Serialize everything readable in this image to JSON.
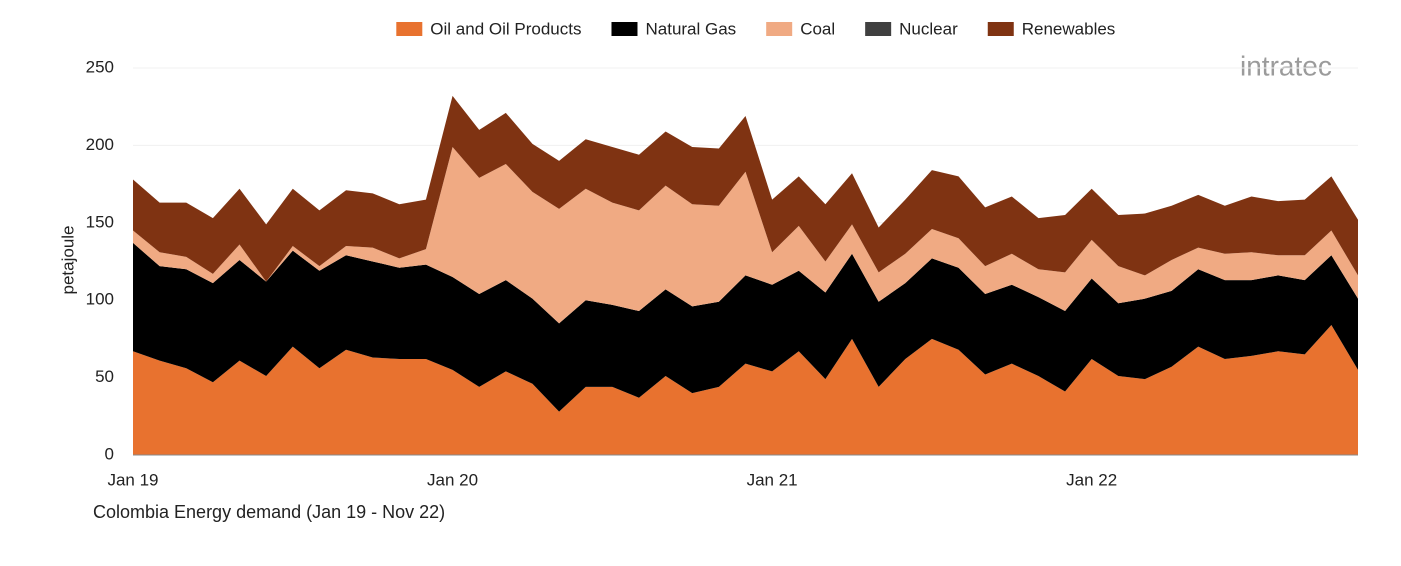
{
  "chart_data": {
    "type": "stacked-area",
    "title": "Colombia Energy demand (Jan 19 - Nov 22)",
    "y_label": "petajoule",
    "logo": "intratec",
    "categories": [
      "Jan 19",
      null,
      null,
      null,
      null,
      null,
      null,
      null,
      null,
      null,
      null,
      null,
      "Jan 20",
      null,
      null,
      null,
      null,
      null,
      null,
      null,
      null,
      null,
      null,
      null,
      "Jan 21",
      null,
      null,
      null,
      null,
      null,
      null,
      null,
      null,
      null,
      null,
      null,
      "Jan 22",
      null,
      null,
      null,
      null,
      null,
      null,
      null,
      null,
      null,
      null
    ],
    "series": [
      {
        "name": "Oil and Oil Products",
        "color": "#e8722f",
        "values": [
          67,
          61,
          56,
          47,
          61,
          51,
          70,
          56,
          68,
          63,
          62,
          62,
          55,
          44,
          54,
          46,
          28,
          44,
          44,
          37,
          51,
          40,
          44,
          59,
          54,
          67,
          49,
          75,
          44,
          62,
          75,
          68,
          52,
          59,
          51,
          41,
          62,
          51,
          49,
          57,
          70,
          62,
          64,
          67,
          65,
          84,
          55
        ]
      },
      {
        "name": "Natural Gas",
        "color": "#000000",
        "values": [
          70,
          61,
          64,
          64,
          65,
          61,
          62,
          63,
          61,
          62,
          59,
          61,
          60,
          60,
          59,
          55,
          57,
          56,
          53,
          56,
          56,
          56,
          55,
          57,
          56,
          52,
          56,
          55,
          55,
          49,
          52,
          53,
          52,
          51,
          51,
          52,
          52,
          47,
          52,
          49,
          50,
          51,
          49,
          49,
          48,
          45,
          46
        ]
      },
      {
        "name": "Coal",
        "color": "#f0aa83",
        "values": [
          8,
          9,
          8,
          6,
          10,
          0,
          3,
          3,
          6,
          9,
          6,
          10,
          84,
          75,
          75,
          69,
          74,
          72,
          66,
          65,
          67,
          66,
          62,
          67,
          21,
          29,
          20,
          19,
          19,
          19,
          19,
          19,
          18,
          20,
          18,
          25,
          25,
          24,
          15,
          20,
          14,
          17,
          18,
          13,
          16,
          16,
          15
        ]
      },
      {
        "name": "Nuclear",
        "color": "#404040",
        "values": [
          0,
          0,
          0,
          0,
          0,
          0,
          0,
          0,
          0,
          0,
          0,
          0,
          0,
          0,
          0,
          0,
          0,
          0,
          0,
          0,
          0,
          0,
          0,
          0,
          0,
          0,
          0,
          0,
          0,
          0,
          0,
          0,
          0,
          0,
          0,
          0,
          0,
          0,
          0,
          0,
          0,
          0,
          0,
          0,
          0,
          0,
          0
        ]
      },
      {
        "name": "Renewables",
        "color": "#7f3312",
        "values": [
          33,
          32,
          35,
          36,
          36,
          37,
          37,
          36,
          36,
          35,
          35,
          32,
          33,
          31,
          33,
          31,
          31,
          32,
          36,
          36,
          35,
          37,
          37,
          36,
          34,
          32,
          37,
          33,
          29,
          35,
          38,
          40,
          38,
          37,
          33,
          37,
          33,
          33,
          40,
          35,
          34,
          31,
          36,
          35,
          36,
          35,
          36
        ]
      }
    ],
    "ylim": [
      0,
      250
    ],
    "yticks": [
      0,
      50,
      100,
      150,
      200,
      250
    ],
    "grid": true,
    "legend": "top"
  }
}
